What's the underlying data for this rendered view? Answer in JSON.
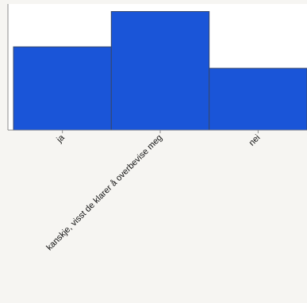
{
  "chart_data": {
    "type": "bar",
    "categories": [
      "ja",
      "kanskje, visst de klarer å overbevise meg",
      "nei"
    ],
    "values": [
      0.66,
      0.94,
      0.49
    ],
    "ylim": [
      0,
      1
    ],
    "grid": false,
    "legend": "none",
    "colors": {
      "bar": "#1a55d8",
      "bar_edge": "#36476a",
      "plot_background": "#ffffff",
      "page_background": "#f6f5f2",
      "axis": "#8c8c8c"
    }
  }
}
